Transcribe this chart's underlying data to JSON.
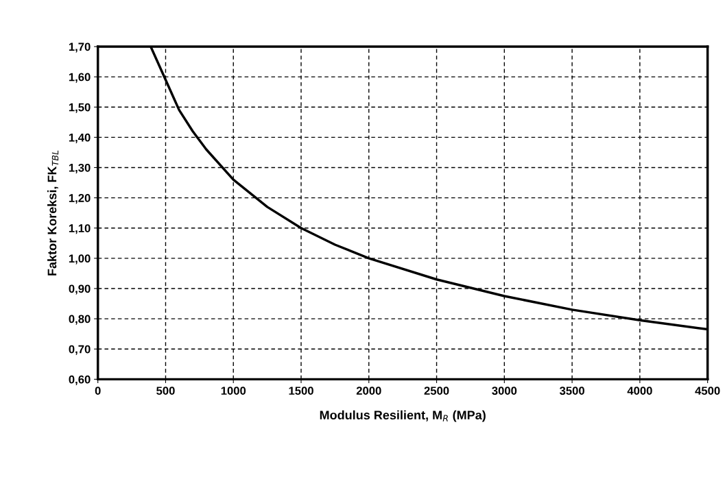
{
  "chart_data": {
    "type": "line",
    "xlabel": "Modulus Resilient, M$_{R}$ (MPa)",
    "ylabel": "Faktor Koreksi, FK$_{TBL}$",
    "x": [
      390,
      500,
      600,
      700,
      800,
      1000,
      1250,
      1500,
      1750,
      2000,
      2500,
      3000,
      3500,
      4000,
      4500
    ],
    "series": [
      {
        "color": "#000000",
        "values": [
          1.7,
          1.59,
          1.49,
          1.42,
          1.36,
          1.26,
          1.17,
          1.1,
          1.045,
          1.0,
          0.93,
          0.875,
          0.83,
          0.795,
          0.765
        ]
      }
    ],
    "xlim": [
      0,
      4500
    ],
    "xticks": [
      0,
      500,
      1000,
      1500,
      2000,
      2500,
      3000,
      3500,
      4000,
      4500
    ],
    "ylim": [
      0.6,
      1.7
    ],
    "yticks": [
      {
        "value": 0.6,
        "label": "0,60"
      },
      {
        "value": 0.7,
        "label": "0,70"
      },
      {
        "value": 0.8,
        "label": "0,80"
      },
      {
        "value": 0.9,
        "label": "0,90"
      },
      {
        "value": 1.0,
        "label": "1,00"
      },
      {
        "value": 1.1,
        "label": "1,10"
      },
      {
        "value": 1.2,
        "label": "1,20"
      },
      {
        "value": 1.3,
        "label": "1,30"
      },
      {
        "value": 1.4,
        "label": "1,40"
      },
      {
        "value": 1.5,
        "label": "1,50"
      },
      {
        "value": 1.6,
        "label": "1,60"
      },
      {
        "value": 1.7,
        "label": "1,70"
      }
    ],
    "grid": true,
    "marker": "none",
    "line_style": "solid",
    "legend": false
  }
}
